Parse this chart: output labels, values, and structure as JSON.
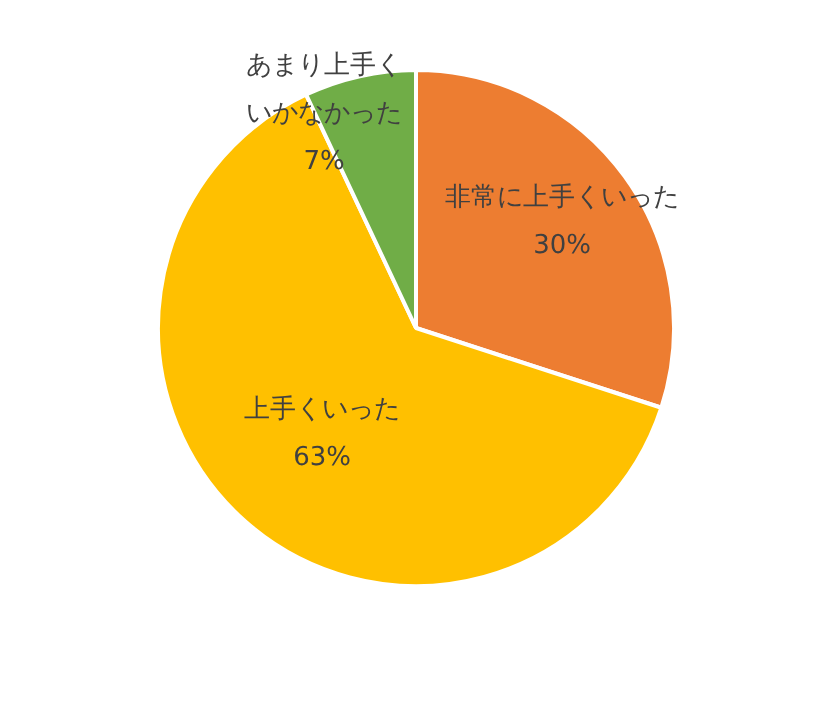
{
  "chart_data": {
    "type": "pie",
    "categories": [
      "非常に上手くいった",
      "上手くいった",
      "あまり上手くいかなかった"
    ],
    "values": [
      30,
      63,
      7
    ],
    "colors": [
      "#ed7d31",
      "#ffc000",
      "#70ad47"
    ],
    "value_labels": [
      "30%",
      "63%",
      "7%"
    ],
    "legend": false
  }
}
